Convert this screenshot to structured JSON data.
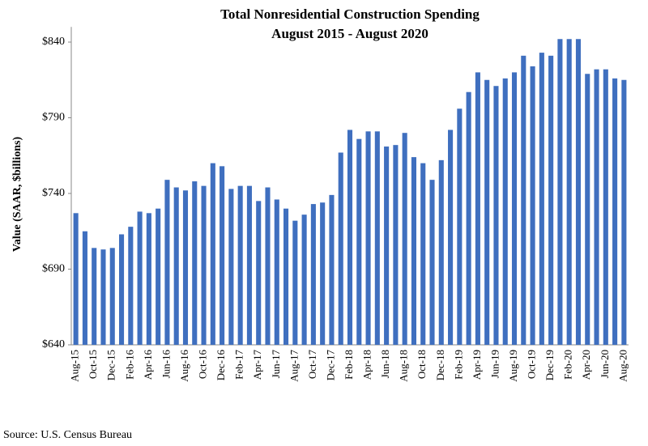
{
  "chart_data": {
    "type": "bar",
    "title": "Total Nonresidential Construction Spending",
    "subtitle": "August 2015 - August 2020",
    "y_label": "Value (SAAR, $billions)",
    "source": "Source:  U.S. Census Bureau",
    "categories": [
      "Aug-15",
      null,
      "Oct-15",
      null,
      "Dec-15",
      null,
      "Feb-16",
      null,
      "Apr-16",
      null,
      "Jun-16",
      null,
      "Aug-16",
      null,
      "Oct-16",
      null,
      "Dec-16",
      null,
      "Feb-17",
      null,
      "Apr-17",
      null,
      "Jun-17",
      null,
      "Aug-17",
      null,
      "Oct-17",
      null,
      "Dec-17",
      null,
      "Feb-18",
      null,
      "Apr-18",
      null,
      "Jun-18",
      null,
      "Aug-18",
      null,
      "Oct-18",
      null,
      "Dec-18",
      null,
      "Feb-19",
      null,
      "Apr-19",
      null,
      "Jun-19",
      null,
      "Aug-19",
      null,
      "Oct-19",
      null,
      "Dec-19",
      null,
      "Feb-20",
      null,
      "Apr-20",
      null,
      "Jun-20",
      null,
      "Aug-20"
    ],
    "values": [
      727,
      715,
      704,
      703,
      704,
      713,
      718,
      728,
      727,
      730,
      749,
      744,
      742,
      748,
      745,
      760,
      758,
      743,
      745,
      745,
      735,
      744,
      736,
      730,
      722,
      726,
      733,
      734,
      739,
      767,
      782,
      776,
      781,
      781,
      771,
      772,
      780,
      764,
      760,
      749,
      762,
      782,
      796,
      807,
      820,
      815,
      811,
      816,
      820,
      831,
      824,
      833,
      831,
      842,
      842,
      842,
      819,
      822,
      822,
      816,
      815
    ],
    "color": "#3f6fbf",
    "ylim": [
      640,
      850
    ],
    "yticks": [
      {
        "value": 640,
        "label": "$640"
      },
      {
        "value": 690,
        "label": "$690"
      },
      {
        "value": 740,
        "label": "$740"
      },
      {
        "value": 790,
        "label": "$790"
      },
      {
        "value": 840,
        "label": "$840"
      }
    ],
    "grid": false
  }
}
